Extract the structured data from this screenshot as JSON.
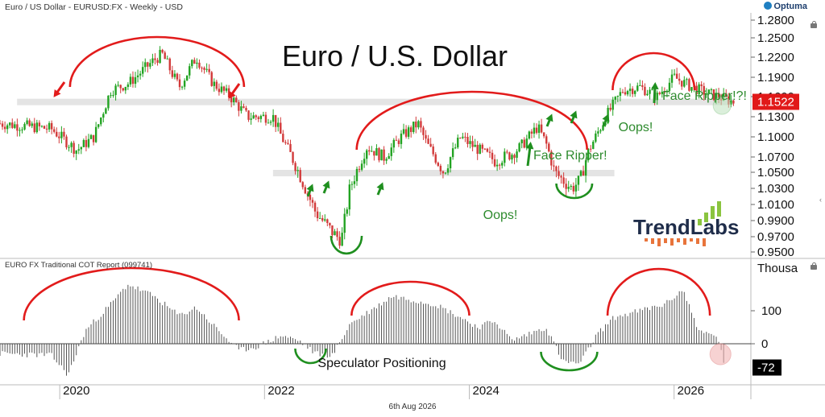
{
  "header": {
    "symbol_line": "Euro / US Dollar - EURUSD:FX - Weekly - USD",
    "brand": "Optuma",
    "date": "6th Aug 2026"
  },
  "chart_data": [
    {
      "type": "candlestick",
      "title": "Euro / U.S. Dollar",
      "ylim": [
        0.94,
        1.29
      ],
      "y_ticks": [
        "1.2800",
        "1.2500",
        "1.2200",
        "1.1900",
        "1.1600",
        "1.1300",
        "1.1000",
        "1.0700",
        "1.0500",
        "1.0300",
        "1.0100",
        "0.9900",
        "0.9700",
        "0.9500"
      ],
      "x_ticks": [
        "2020",
        "2022",
        "2024",
        "2026"
      ],
      "last_price": "1.1522",
      "price_path": [
        [
          "2019-06",
          1.12
        ],
        [
          "2019-12",
          1.112
        ],
        [
          "2020-03",
          1.08
        ],
        [
          "2020-05",
          1.1
        ],
        [
          "2020-07",
          1.17
        ],
        [
          "2020-09",
          1.18
        ],
        [
          "2020-12",
          1.215
        ],
        [
          "2021-01",
          1.225
        ],
        [
          "2021-03",
          1.175
        ],
        [
          "2021-05",
          1.22
        ],
        [
          "2021-07",
          1.18
        ],
        [
          "2021-09",
          1.16
        ],
        [
          "2021-11",
          1.13
        ],
        [
          "2022-02",
          1.13
        ],
        [
          "2022-03",
          1.1
        ],
        [
          "2022-05",
          1.05
        ],
        [
          "2022-07",
          1.0
        ],
        [
          "2022-09",
          0.975
        ],
        [
          "2022-10",
          0.965
        ],
        [
          "2022-11",
          1.03
        ],
        [
          "2023-01",
          1.085
        ],
        [
          "2023-03",
          1.07
        ],
        [
          "2023-05",
          1.1
        ],
        [
          "2023-07",
          1.12
        ],
        [
          "2023-08",
          1.09
        ],
        [
          "2023-10",
          1.05
        ],
        [
          "2023-12",
          1.1
        ],
        [
          "2024-01",
          1.09
        ],
        [
          "2024-04",
          1.065
        ],
        [
          "2024-06",
          1.075
        ],
        [
          "2024-07",
          1.085
        ],
        [
          "2024-09",
          1.115
        ],
        [
          "2024-10",
          1.09
        ],
        [
          "2024-11",
          1.05
        ],
        [
          "2025-01",
          1.03
        ],
        [
          "2025-02",
          1.04
        ],
        [
          "2025-03",
          1.08
        ],
        [
          "2025-05",
          1.13
        ],
        [
          "2025-07",
          1.17
        ],
        [
          "2025-09",
          1.175
        ],
        [
          "2025-11",
          1.16
        ],
        [
          "2026-01",
          1.19
        ],
        [
          "2026-03",
          1.175
        ],
        [
          "2026-05",
          1.165
        ],
        [
          "2026-08",
          1.152
        ]
      ],
      "support_zones": [
        {
          "from": "2019-08",
          "to": "2026-08",
          "value": 1.152
        },
        {
          "from": "2022-02",
          "to": "2025-06",
          "value": 1.049
        }
      ],
      "annotations": [
        {
          "text": "Face Ripper!",
          "date": "2025-04",
          "value": 1.075,
          "color": "green"
        },
        {
          "text": "Face Ripper!?!",
          "date": "2026-07",
          "value": 1.163,
          "color": "green"
        },
        {
          "text": "Oops!",
          "date": "2025-03",
          "value": 1.004,
          "color": "green"
        },
        {
          "text": "Oops!",
          "date": "2026-06",
          "value": 1.135,
          "color": "green"
        }
      ],
      "brand_logo": "TrendLabs"
    },
    {
      "type": "bar",
      "title": "EURO FX Traditional COT Report (099741)",
      "ylabel": "Thousa",
      "y_ticks": [
        "100",
        "0"
      ],
      "ylim": [
        -110,
        210
      ],
      "last_value": "-72",
      "label": "Speculator Positioning",
      "positioning_path": [
        [
          "2019-06",
          -30
        ],
        [
          "2019-12",
          -35
        ],
        [
          "2020-02",
          -95
        ],
        [
          "2020-04",
          40
        ],
        [
          "2020-07",
          120
        ],
        [
          "2020-09",
          180
        ],
        [
          "2020-12",
          145
        ],
        [
          "2021-03",
          85
        ],
        [
          "2021-05",
          110
        ],
        [
          "2021-08",
          30
        ],
        [
          "2021-10",
          -20
        ],
        [
          "2021-12",
          -10
        ],
        [
          "2022-03",
          25
        ],
        [
          "2022-05",
          10
        ],
        [
          "2022-07",
          -30
        ],
        [
          "2022-09",
          -35
        ],
        [
          "2022-11",
          60
        ],
        [
          "2023-02",
          110
        ],
        [
          "2023-04",
          145
        ],
        [
          "2023-06",
          135
        ],
        [
          "2023-09",
          120
        ],
        [
          "2023-12",
          80
        ],
        [
          "2024-02",
          50
        ],
        [
          "2024-04",
          70
        ],
        [
          "2024-06",
          10
        ],
        [
          "2024-08",
          30
        ],
        [
          "2024-10",
          50
        ],
        [
          "2024-12",
          -55
        ],
        [
          "2025-02",
          -60
        ],
        [
          "2025-04",
          30
        ],
        [
          "2025-06",
          80
        ],
        [
          "2025-09",
          100
        ],
        [
          "2025-12",
          120
        ],
        [
          "2026-02",
          165
        ],
        [
          "2026-04",
          35
        ],
        [
          "2026-06",
          25
        ],
        [
          "2026-07",
          -72
        ]
      ],
      "arcs": [
        "2020-2021 peak",
        "2023 peak",
        "2025-2026 peak"
      ],
      "troughs": [
        "2022",
        "2025"
      ]
    }
  ]
}
